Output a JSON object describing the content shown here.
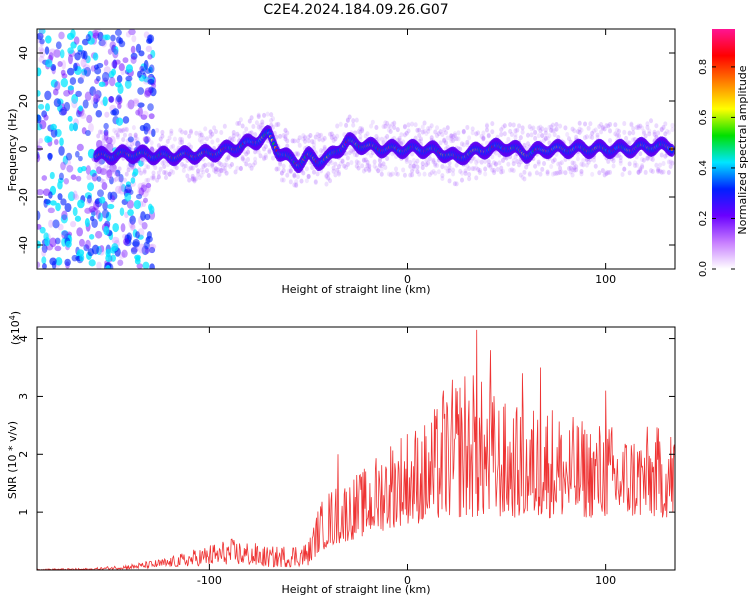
{
  "title": "C2E4.2024.184.09.26.G07",
  "chart_data": [
    {
      "type": "heatmap",
      "xlabel": "Height of straight line (km)",
      "ylabel": "Frequency (Hz)",
      "xlim": [
        -187,
        135
      ],
      "ylim": [
        -50,
        50
      ],
      "xticks": [
        -100,
        0,
        100
      ],
      "yticks": [
        -40,
        -20,
        0,
        20,
        40
      ],
      "colorbar": {
        "label": "Normalized spectral amplitude",
        "range": [
          0,
          0.95
        ],
        "ticks": [
          0.0,
          0.2,
          0.4,
          0.6,
          0.8
        ],
        "colors": [
          "#ffffff",
          "#c77dff",
          "#6a00ff",
          "#0020ff",
          "#00e6ff",
          "#00e000",
          "#ffff00",
          "#ff7f00",
          "#ff0000",
          "#ff1493"
        ]
      },
      "ridge": {
        "x": [
          -155,
          -140,
          -120,
          -100,
          -85,
          -75,
          -70,
          -65,
          -60,
          -55,
          -50,
          -45,
          -40,
          -35,
          -30,
          -25,
          -20,
          -10,
          0,
          10,
          20,
          25,
          30,
          40,
          50,
          60,
          70,
          80,
          90,
          100,
          110,
          120,
          130
        ],
        "freq": [
          -3,
          -2,
          -3,
          -2,
          1,
          4,
          6,
          -1,
          -4,
          -6,
          -3,
          -5,
          -4,
          0,
          3,
          2,
          1,
          0,
          0,
          0,
          -2,
          -4,
          -2,
          0,
          1,
          -2,
          0,
          0,
          0,
          0,
          0,
          1,
          1
        ]
      },
      "noise_region_x": [
        -187,
        -140
      ]
    },
    {
      "type": "line",
      "color": "#ee3333",
      "xlabel": "Height of straight line (km)",
      "ylabel": "SNR (10 * v/v)",
      "scale_label": "(x10",
      "scale_exp": "4",
      "scale_close": ")",
      "xlim": [
        -187,
        135
      ],
      "ylim": [
        0,
        4.2
      ],
      "xticks": [
        -100,
        0,
        100
      ],
      "yticks": [
        1,
        2,
        3,
        4
      ],
      "envelope": {
        "x": [
          -187,
          -160,
          -140,
          -120,
          -100,
          -90,
          -80,
          -70,
          -60,
          -50,
          -45,
          -40,
          -30,
          -20,
          -10,
          0,
          10,
          20,
          30,
          40,
          50,
          60,
          70,
          80,
          90,
          100,
          110,
          120,
          135
        ],
        "low": [
          0,
          0,
          0.02,
          0.05,
          0.08,
          0.1,
          0.08,
          0.05,
          0.05,
          0.08,
          0.3,
          0.4,
          0.5,
          0.6,
          0.7,
          0.8,
          0.8,
          0.9,
          0.9,
          0.9,
          0.9,
          0.9,
          0.9,
          0.9,
          0.9,
          0.9,
          0.9,
          0.9,
          0.9
        ],
        "high": [
          0.02,
          0.03,
          0.1,
          0.22,
          0.45,
          0.55,
          0.5,
          0.4,
          0.45,
          0.5,
          1.1,
          1.4,
          1.6,
          1.8,
          2.3,
          2.5,
          2.6,
          3.2,
          3.6,
          3.2,
          2.9,
          2.8,
          3.0,
          2.7,
          2.6,
          2.6,
          2.4,
          2.5,
          2.5
        ]
      },
      "peaks": [
        {
          "x": -35,
          "y": 2.0
        },
        {
          "x": 18,
          "y": 3.1
        },
        {
          "x": 35,
          "y": 4.15
        },
        {
          "x": 42,
          "y": 3.8
        },
        {
          "x": 58,
          "y": 3.4
        },
        {
          "x": 67,
          "y": 3.5
        },
        {
          "x": 100,
          "y": 3.1
        }
      ]
    }
  ]
}
